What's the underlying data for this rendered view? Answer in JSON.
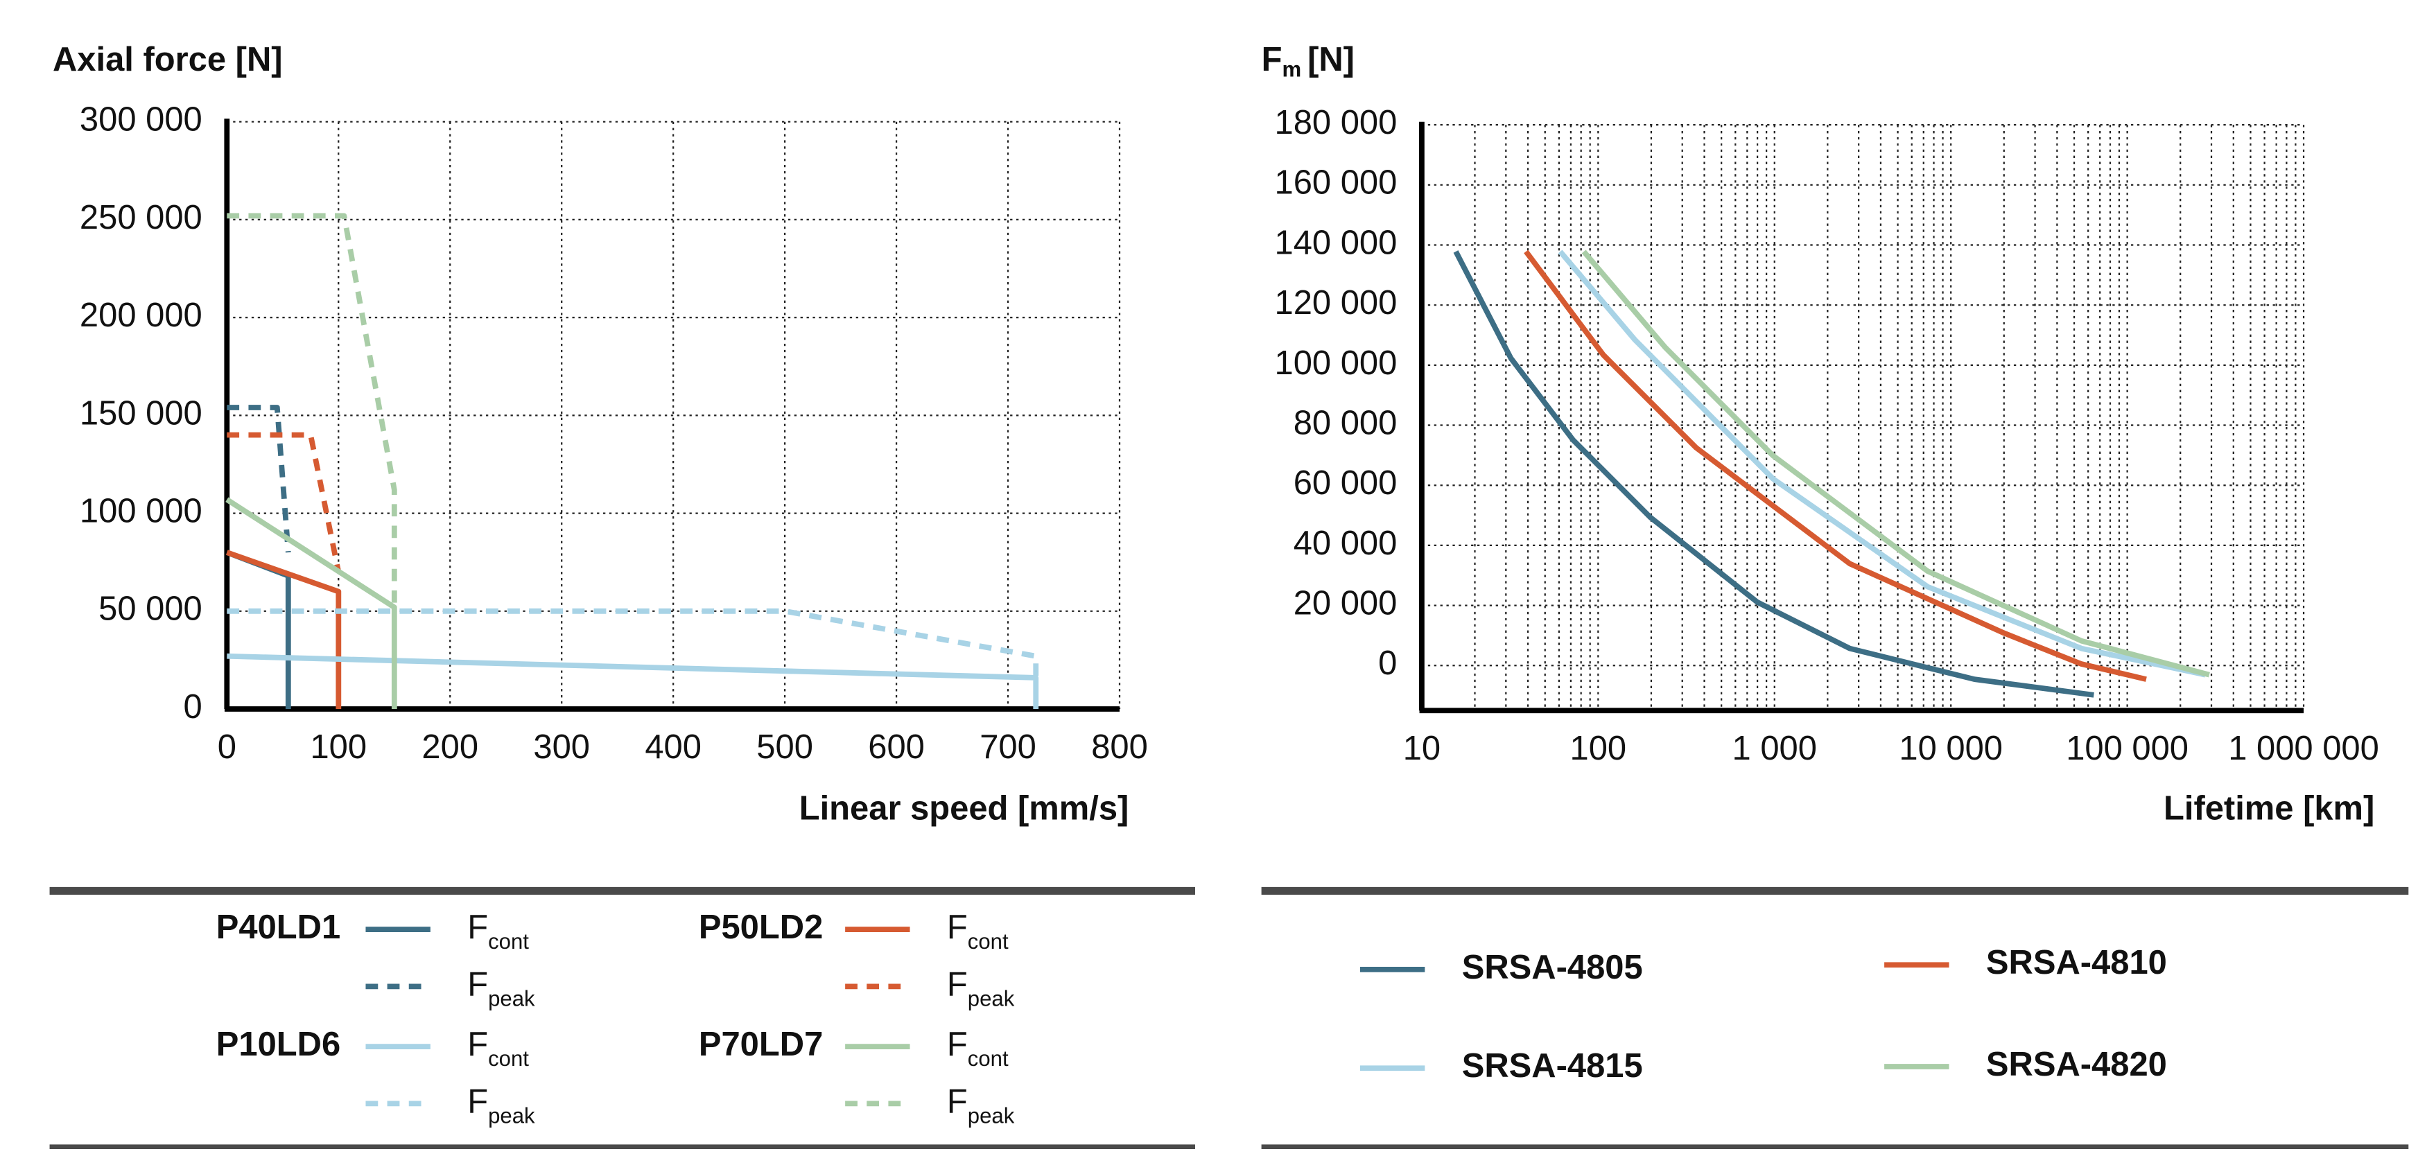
{
  "chart_data": [
    {
      "type": "line",
      "title": "Axial force [N]",
      "xlabel": "Linear speed [mm/s]",
      "xlim": [
        0,
        800
      ],
      "ylim": [
        0,
        300000
      ],
      "xticks": [
        0,
        100,
        200,
        300,
        400,
        500,
        600,
        700,
        800
      ],
      "yticks": [
        0,
        {
          "value": 50000,
          "label": "50 000"
        },
        {
          "value": 100000,
          "label": "100 000"
        },
        {
          "value": 150000,
          "label": "150 000"
        },
        {
          "value": 200000,
          "label": "200 000"
        },
        {
          "value": 250000,
          "label": "250 000"
        },
        {
          "value": 300000,
          "label": "300 000"
        }
      ],
      "grid": true,
      "series": [
        {
          "name": "P40LD1",
          "color": "#3d6e85",
          "lines": [
            {
              "label": "F",
              "subscript": "cont",
              "dash": false,
              "x": [
                0,
                55,
                55
              ],
              "values": [
                80000,
                68000,
                0
              ]
            },
            {
              "label": "F",
              "subscript": "peak",
              "dash": true,
              "x": [
                0,
                45,
                55
              ],
              "values": [
                154000,
                154000,
                80000
              ]
            }
          ]
        },
        {
          "name": "P50LD2",
          "color": "#d65a31",
          "lines": [
            {
              "label": "F",
              "subscript": "cont",
              "dash": false,
              "x": [
                0,
                100,
                100
              ],
              "values": [
                80000,
                60000,
                0
              ]
            },
            {
              "label": "F",
              "subscript": "peak",
              "dash": true,
              "x": [
                0,
                75,
                100
              ],
              "values": [
                140000,
                140000,
                70000
              ]
            }
          ]
        },
        {
          "name": "P10LD6",
          "color": "#a8d3e6",
          "lines": [
            {
              "label": "F",
              "subscript": "cont",
              "dash": false,
              "x": [
                0,
                725,
                725
              ],
              "values": [
                27000,
                16000,
                0
              ]
            },
            {
              "label": "F",
              "subscript": "peak",
              "dash": true,
              "x": [
                0,
                500,
                725,
                725
              ],
              "values": [
                50000,
                50000,
                27000,
                16000
              ]
            }
          ]
        },
        {
          "name": "P70LD7",
          "color": "#a9cda7",
          "lines": [
            {
              "label": "F",
              "subscript": "cont",
              "dash": false,
              "x": [
                0,
                150,
                150
              ],
              "values": [
                107000,
                52000,
                0
              ]
            },
            {
              "label": "F",
              "subscript": "peak",
              "dash": true,
              "x": [
                0,
                105,
                150,
                150
              ],
              "values": [
                252000,
                252000,
                112000,
                52000
              ]
            }
          ]
        }
      ]
    },
    {
      "type": "line",
      "title": "F",
      "title_subscript": "m",
      "title_unit": "[N]",
      "xlabel": "Lifetime [km]",
      "xscale": "log",
      "xlim": [
        10,
        1000000
      ],
      "ylim": [
        -15000,
        180000
      ],
      "xticks": [
        10,
        100,
        {
          "value": 1000,
          "label": "1 000"
        },
        {
          "value": 10000,
          "label": "10 000"
        },
        {
          "value": 100000,
          "label": "100 000"
        },
        {
          "value": 1000000,
          "label": "1 000 000"
        }
      ],
      "yticks": [
        0,
        {
          "value": 20000,
          "label": "20 000"
        },
        {
          "value": 40000,
          "label": "40 000"
        },
        {
          "value": 60000,
          "label": "60 000"
        },
        {
          "value": 80000,
          "label": "80 000"
        },
        {
          "value": 100000,
          "label": "100 000"
        },
        {
          "value": 120000,
          "label": "120 000"
        },
        {
          "value": 140000,
          "label": "140 000"
        },
        {
          "value": 160000,
          "label": "160 000"
        },
        {
          "value": 180000,
          "label": "180 000"
        }
      ],
      "grid": true,
      "minor_grid": true,
      "series": [
        {
          "name": "SRSA-4805",
          "color": "#3d6e85",
          "x": [
            15.6,
            32,
            72,
            197,
            800,
            2670,
            13600,
            64600
          ],
          "values": [
            137800,
            102300,
            75100,
            49400,
            21100,
            5700,
            -4600,
            -9800
          ]
        },
        {
          "name": "SRSA-4810",
          "color": "#d65a31",
          "x": [
            39,
            107,
            360,
            2670,
            20000,
            55000,
            128000
          ],
          "values": [
            137800,
            103400,
            72500,
            33900,
            10800,
            500,
            -4600
          ]
        },
        {
          "name": "SRSA-4815",
          "color": "#a8d3e6",
          "x": [
            61,
            161,
            980,
            7400,
            55000,
            277000
          ],
          "values": [
            137800,
            108500,
            62200,
            26200,
            5700,
            -3100
          ]
        },
        {
          "name": "SRSA-4820",
          "color": "#a9cda7",
          "x": [
            83,
            240,
            980,
            7400,
            55000,
            292000
          ],
          "values": [
            137800,
            105900,
            69900,
            31400,
            8200,
            -3100
          ]
        }
      ]
    }
  ]
}
